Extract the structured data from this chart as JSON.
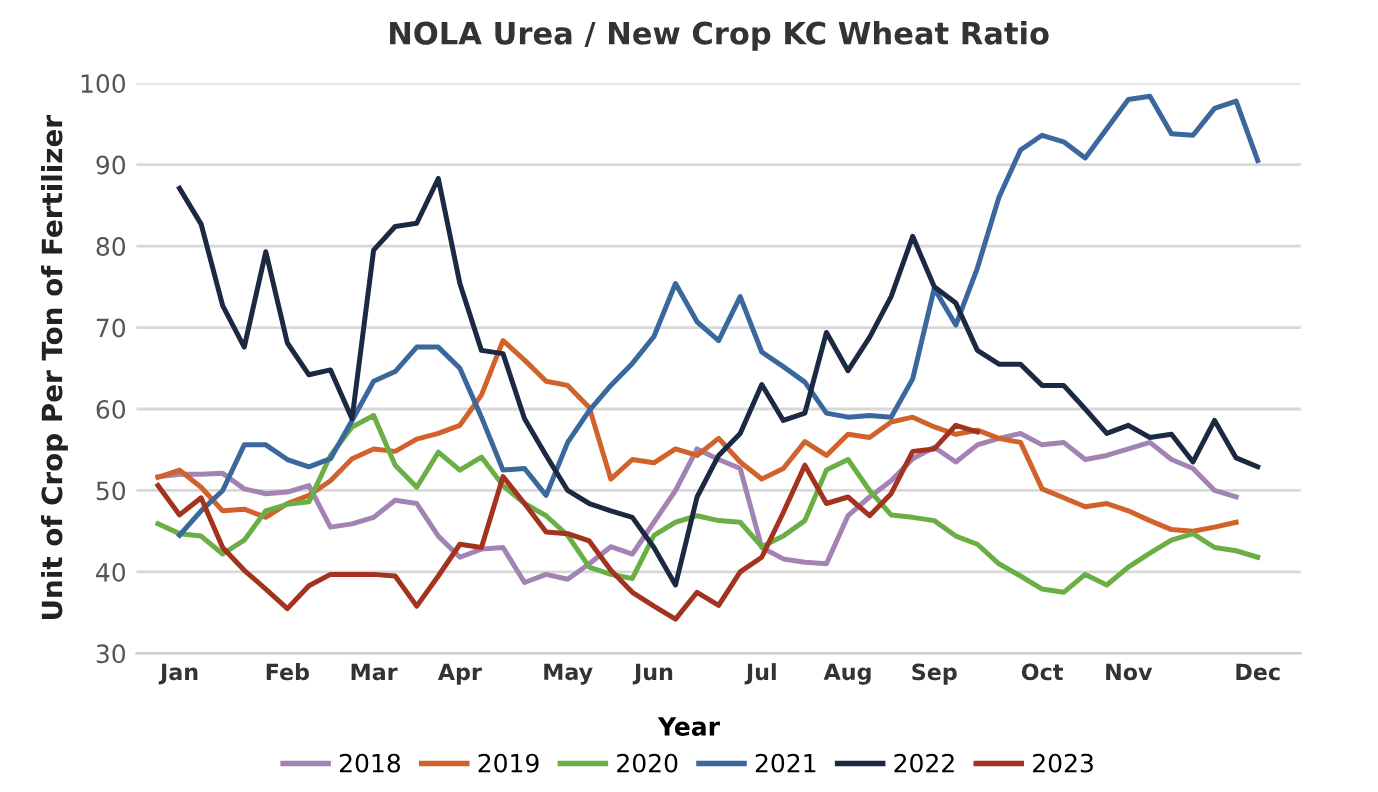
{
  "chart_data": {
    "type": "line",
    "title": "NOLA Urea / New Crop KC Wheat Ratio",
    "ylabel": "Unit of Crop Per Ton of Fertilizer",
    "legend_title": "Year",
    "categories": [
      null,
      "Jan",
      null,
      null,
      null,
      null,
      "Feb",
      null,
      null,
      null,
      "Mar",
      null,
      null,
      null,
      "Apr",
      null,
      null,
      null,
      null,
      "May",
      null,
      null,
      null,
      "Jun",
      null,
      null,
      null,
      null,
      "Jul",
      null,
      null,
      null,
      "Aug",
      null,
      null,
      null,
      "Sep",
      null,
      null,
      null,
      null,
      "Oct",
      null,
      null,
      null,
      "Nov",
      null,
      null,
      null,
      null,
      null,
      "Dec"
    ],
    "ylim": [
      30,
      100
    ],
    "yticks": [
      30,
      40,
      50,
      60,
      70,
      80,
      90,
      100
    ],
    "grid": "y",
    "legend": "bottom",
    "marker": "none",
    "line_style": "solid",
    "series": [
      {
        "name": "2018",
        "color": "#a383b3",
        "values": [
          51.7,
          52,
          52,
          52.1,
          50.2,
          49.6,
          49.8,
          50.6,
          45.5,
          45.9,
          46.7,
          48.8,
          48.4,
          44.4,
          41.8,
          42.8,
          43,
          38.7,
          39.7,
          39.1,
          41,
          43.1,
          42.2,
          46.1,
          50,
          55.1,
          53.8,
          52.7,
          43,
          41.6,
          41.2,
          41,
          46.9,
          49.2,
          51.2,
          53.9,
          55.3,
          53.5,
          55.6,
          56.4,
          57,
          55.6,
          55.9,
          53.8,
          54.3,
          55.1,
          55.9,
          53.8,
          52.7,
          50,
          49.2,
          null
        ]
      },
      {
        "name": "2019",
        "color": "#d2622b",
        "values": [
          51.6,
          52.5,
          50.4,
          47.5,
          47.7,
          46.7,
          48.4,
          49.4,
          51.2,
          53.9,
          55.1,
          54.8,
          56.3,
          57,
          58,
          61.7,
          68.4,
          66,
          63.4,
          62.9,
          60.2,
          51.4,
          53.8,
          53.4,
          55.1,
          54.3,
          56.4,
          53.5,
          51.4,
          52.7,
          56,
          54.3,
          56.9,
          56.5,
          58.4,
          59,
          57.8,
          56.9,
          57.4,
          56.4,
          55.9,
          50.2,
          49.1,
          48,
          48.4,
          47.5,
          46.3,
          45.2,
          45,
          45.5,
          46.1,
          null
        ]
      },
      {
        "name": "2020",
        "color": "#6aaf45",
        "values": [
          45.9,
          44.7,
          44.4,
          42.2,
          43.9,
          47.5,
          48.3,
          48.6,
          54.3,
          57.8,
          59.2,
          53.1,
          50.4,
          54.7,
          52.5,
          54.1,
          50.6,
          48.4,
          46.9,
          44.5,
          40.6,
          39.7,
          39.2,
          44.5,
          46.1,
          46.9,
          46.3,
          46.1,
          43.1,
          44.4,
          46.3,
          52.5,
          53.8,
          50,
          47,
          46.7,
          46.3,
          44.4,
          43.4,
          41,
          39.5,
          37.9,
          37.5,
          39.7,
          38.4,
          40.6,
          42.3,
          43.9,
          44.7,
          43,
          42.6,
          41.8
        ]
      },
      {
        "name": "2021",
        "color": "#3a679c",
        "values": [
          null,
          44.5,
          47.5,
          50,
          55.6,
          55.6,
          53.8,
          52.9,
          53.9,
          58.6,
          63.4,
          64.6,
          67.6,
          67.6,
          65,
          59,
          52.5,
          52.7,
          49.4,
          55.9,
          59.8,
          62.9,
          65.6,
          68.9,
          75.4,
          70.7,
          68.4,
          73.8,
          67,
          65.2,
          63.3,
          59.5,
          59,
          59.2,
          59,
          63.7,
          74.8,
          70.3,
          77.3,
          86,
          91.8,
          93.6,
          92.8,
          90.8,
          94.4,
          98,
          98.4,
          93.8,
          93.6,
          96.9,
          97.8,
          90.5
        ]
      },
      {
        "name": "2022",
        "color": "#1b2a42",
        "values": [
          null,
          87.1,
          82.7,
          72.7,
          67.6,
          79.3,
          68.1,
          64.2,
          64.8,
          58.8,
          79.5,
          82.4,
          82.8,
          88.3,
          75.4,
          67.2,
          66.8,
          58.8,
          54.3,
          50,
          48.4,
          47.5,
          46.7,
          43,
          38.4,
          49.2,
          54.3,
          57,
          63,
          58.6,
          59.5,
          69.4,
          64.7,
          68.8,
          73.8,
          81.2,
          75,
          73,
          67.2,
          65.5,
          65.5,
          62.9,
          62.9,
          60,
          57,
          58,
          56.5,
          56.9,
          53.5,
          58.6,
          54,
          52.9
        ]
      },
      {
        "name": "2023",
        "color": "#a3321f",
        "values": [
          50.6,
          47,
          49.1,
          43,
          40.2,
          37.9,
          35.5,
          38.3,
          39.7,
          39.7,
          39.7,
          39.5,
          35.8,
          39.5,
          43.4,
          43,
          51.7,
          48.4,
          44.9,
          44.7,
          43.8,
          40.2,
          37.5,
          35.8,
          34.2,
          37.5,
          35.9,
          40,
          41.8,
          47.3,
          53.1,
          48.4,
          49.2,
          46.9,
          49.6,
          54.8,
          55.1,
          58,
          57.2,
          null,
          null,
          null,
          null,
          null,
          null,
          null,
          null,
          null,
          null,
          null,
          null,
          null
        ]
      }
    ]
  }
}
